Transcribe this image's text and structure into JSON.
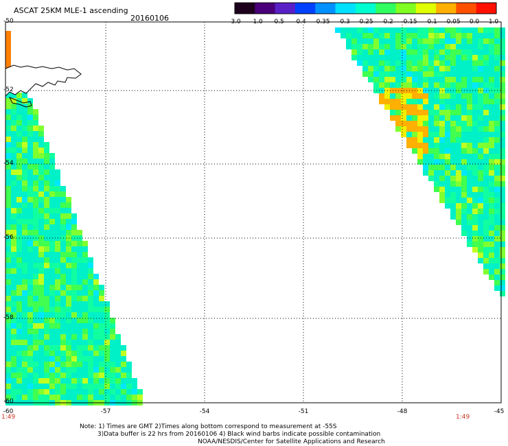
{
  "header": {
    "title": "ASCAT 25KM MLE-1 ascending",
    "date": "20160106"
  },
  "colorbar": {
    "labels": [
      "-3.0",
      "-1.0",
      "-0.5",
      "-0.4",
      "-0.35",
      "-0.3",
      "-0.25",
      "-0.2",
      "-0.15",
      "-0.1",
      "-0.05",
      "0.0",
      "1.0"
    ],
    "colors": [
      "#1c001c",
      "#4a007a",
      "#5a20c8",
      "#0040ff",
      "#0090ff",
      "#00e0ff",
      "#00ffd0",
      "#30ff60",
      "#80ff20",
      "#e0ff00",
      "#ffb000",
      "#ff5000",
      "#ff1000"
    ]
  },
  "axes": {
    "lat_labels": [
      "-50",
      "-52",
      "-54",
      "-56",
      "-58",
      "-60"
    ],
    "lon_labels": [
      "-60",
      "-57",
      "-54",
      "-51",
      "-48",
      "-45"
    ]
  },
  "times": {
    "left": "1:49",
    "right": "1:49"
  },
  "notes": {
    "line1": "Note: 1) Times are GMT 2)Times along bottom correspond to measurement at -55S",
    "line2": "3)Data buffer is 22 hrs from 20160106 4) Black wind barbs indicate possible contamination",
    "line3": "NOAA/NESDIS/Center for Satellite Applications and Research"
  }
}
